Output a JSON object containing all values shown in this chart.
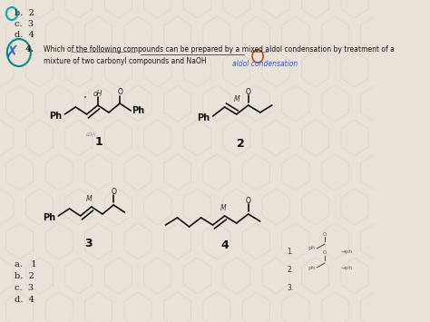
{
  "bg_color": "#d6cfc4",
  "title_text": "Which of the following compounds can be prepared by a mixed aldol condensation by treatment of a\nmixture of two carbonyl compounds and NaOH",
  "annotation": "aldol condensation",
  "question_num": "4.",
  "top_lines": [
    "b.  2",
    "c.  3",
    "d.  4"
  ],
  "bottom_choices": [
    "a.   1",
    "b.  2",
    "c.  3",
    "d.  4"
  ],
  "compound_labels": [
    "1",
    "2",
    "3",
    "4"
  ],
  "hex_bg": "#c8c0b0",
  "paper_color": "#e8e2d8",
  "text_color": "#1a1a1a",
  "blue_annotation_color": "#3060c0",
  "circle_color": "#00aaaa"
}
